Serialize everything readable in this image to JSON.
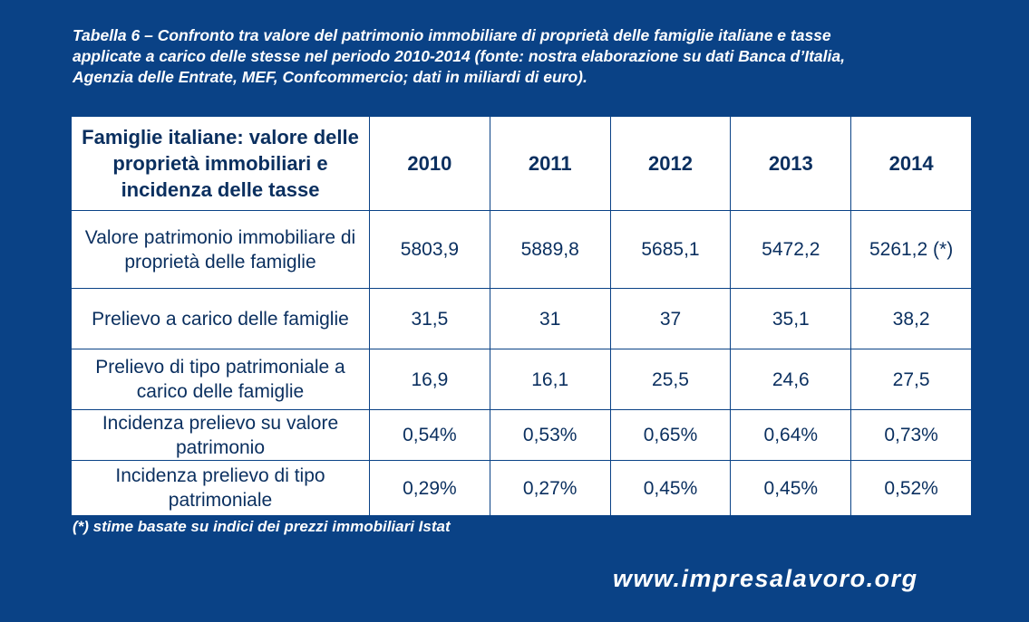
{
  "caption": {
    "line1": "Tabella 6 – Confronto tra valore del patrimonio immobiliare di proprietà delle famiglie italiane e tasse",
    "line2": "applicate a carico delle stesse nel periodo 2010-2014 (fonte: nostra elaborazione su dati Banca d’Italia,",
    "line3": "Agenzia delle Entrate, MEF, Confcommercio; dati in miliardi di euro)."
  },
  "table": {
    "header_label": "Famiglie italiane: valore delle proprietà immobiliari e incidenza delle tasse",
    "years": [
      "2010",
      "2011",
      "2012",
      "2013",
      "2014"
    ],
    "rows": [
      {
        "label": "Valore patrimonio immobiliare di proprietà delle famiglie",
        "values": [
          "5803,9",
          "5889,8",
          "5685,1",
          "5472,2",
          "5261,2 (*)"
        ]
      },
      {
        "label": "Prelievo a carico delle famiglie",
        "values": [
          "31,5",
          "31",
          "37",
          "35,1",
          "38,2"
        ]
      },
      {
        "label": "Prelievo di tipo patrimoniale a carico delle famiglie",
        "values": [
          "16,9",
          "16,1",
          "25,5",
          "24,6",
          "27,5"
        ]
      },
      {
        "label": "Incidenza prelievo su valore patrimonio",
        "values": [
          "0,54%",
          "0,53%",
          "0,65%",
          "0,64%",
          "0,73%"
        ]
      },
      {
        "label": "Incidenza prelievo di tipo patrimoniale",
        "values": [
          "0,29%",
          "0,27%",
          "0,45%",
          "0,45%",
          "0,52%"
        ]
      }
    ]
  },
  "note": "(*) stime basate su indici dei prezzi immobiliari Istat",
  "website": "www.impresalavoro.org",
  "colors": {
    "background": "#0a4286",
    "table_text": "#0a2f5f",
    "table_background": "#ffffff"
  }
}
